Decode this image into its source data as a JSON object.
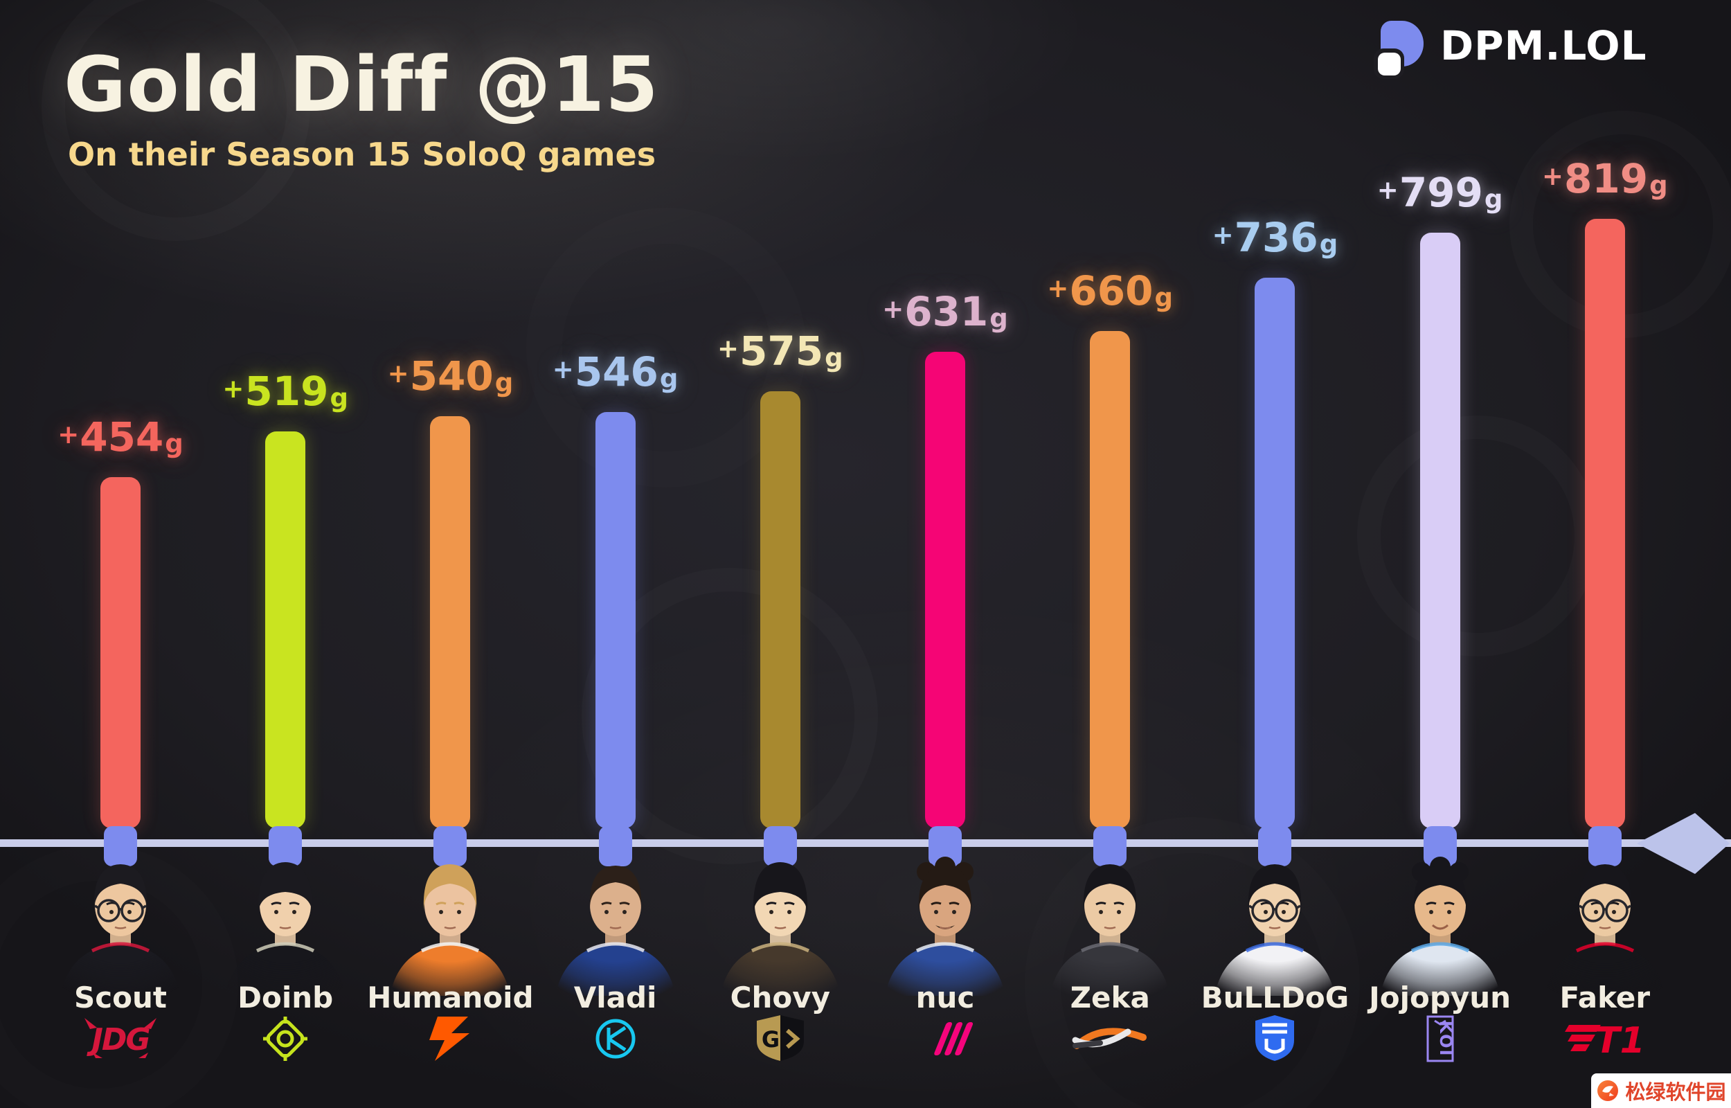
{
  "header": {
    "title": "Gold Diff @15",
    "subtitle": "On their Season 15 SoloQ games"
  },
  "brand": {
    "name": "DPM.LOL",
    "mark_color": "#7d8bee"
  },
  "axis": {
    "color": "#c9cdea",
    "connector_color": "#7d8bee",
    "end_diamond_color": "#bcc3ea"
  },
  "watermark": {
    "text": "松绿软件园",
    "text_color": "#e0452b",
    "icon": "fox-logo-icon",
    "background": "#ffffff"
  },
  "chart_data": {
    "type": "bar",
    "title": "Gold Diff @15",
    "subtitle": "On their Season 15 SoloQ games",
    "value_prefix": "+",
    "unit": "g",
    "grid": false,
    "legend": false,
    "categories": [
      "Scout",
      "Doinb",
      "Humanoid",
      "Vladi",
      "Chovy",
      "nuc",
      "Zeka",
      "BuLLDoG",
      "Jojopyun",
      "Faker"
    ],
    "values": [
      454,
      519,
      540,
      546,
      575,
      631,
      660,
      736,
      799,
      819
    ],
    "value_labels": [
      "+454g",
      "+519g",
      "+540g",
      "+546g",
      "+575g",
      "+631g",
      "+660g",
      "+736g",
      "+799g",
      "+819g"
    ],
    "bar_colors": [
      "#f4655e",
      "#c9e420",
      "#f0964b",
      "#7d8bee",
      "#a8892f",
      "#f50575",
      "#f0964b",
      "#7d8bee",
      "#d9cdf6",
      "#f4655e"
    ],
    "label_colors": [
      "#f4665e",
      "#c9e420",
      "#f0964b",
      "#a9c6ee",
      "#f3e7b5",
      "#ddb3cd",
      "#f0964b",
      "#a9cdf0",
      "#e4def5",
      "#f08d85"
    ]
  },
  "players": [
    {
      "name": "Scout",
      "team_logo": "jdg",
      "avatar": {
        "hair": "#1c1b20",
        "skin": "#edc79f",
        "jersey": "#1a1a20",
        "accent": "#d5173c",
        "style": "fringe",
        "glasses": true,
        "mustache": false,
        "smile": false
      }
    },
    {
      "name": "Doinb",
      "team_logo": "nip",
      "avatar": {
        "hair": "#1b1a1f",
        "skin": "#f0d0ac",
        "jersey": "#17171c",
        "accent": "#cfcdb8",
        "style": "bowl",
        "glasses": false,
        "mustache": false,
        "smile": false
      }
    },
    {
      "name": "Humanoid",
      "team_logo": "fnatic",
      "avatar": {
        "hair": "#cfa15a",
        "skin": "#ecc3a0",
        "jersey": "#ee7d2c",
        "accent": "#f5f5f5",
        "style": "fringe",
        "glasses": false,
        "mustache": false,
        "smile": false
      }
    },
    {
      "name": "Vladi",
      "team_logo": "karmine-corp",
      "avatar": {
        "hair": "#2c2019",
        "skin": "#dcb08c",
        "jersey": "#24418f",
        "accent": "#e8e8f0",
        "style": "short",
        "glasses": false,
        "mustache": false,
        "smile": false
      }
    },
    {
      "name": "Chovy",
      "team_logo": "geng",
      "avatar": {
        "hair": "#17161b",
        "skin": "#f2d7b4",
        "jersey": "#46392c",
        "accent": "#c9b07e",
        "style": "bowl",
        "glasses": false,
        "mustache": false,
        "smile": false
      }
    },
    {
      "name": "nuc",
      "team_logo": "bds",
      "avatar": {
        "hair": "#241a14",
        "skin": "#d9a57f",
        "jersey": "#2e4e9e",
        "accent": "#e8ecf4",
        "style": "curly",
        "glasses": false,
        "mustache": true,
        "smile": false
      }
    },
    {
      "name": "Zeka",
      "team_logo": "hle",
      "avatar": {
        "hair": "#17161b",
        "skin": "#eccaa4",
        "jersey": "#36363c",
        "accent": "#6a6a72",
        "style": "fringe",
        "glasses": false,
        "mustache": false,
        "smile": false
      }
    },
    {
      "name": "BuLLDoG",
      "team_logo": "blue-shield",
      "avatar": {
        "hair": "#17161b",
        "skin": "#f0d2ae",
        "jersey": "#f2f2f5",
        "accent": "#3a6ae0",
        "style": "fringe",
        "glasses": true,
        "mustache": false,
        "smile": false
      }
    },
    {
      "name": "Jojopyun",
      "team_logo": "koi",
      "avatar": {
        "hair": "#17161b",
        "skin": "#e6b88b",
        "jersey": "#dfe6f0",
        "accent": "#5aa8e8",
        "style": "curly",
        "glasses": false,
        "mustache": false,
        "smile": true
      }
    },
    {
      "name": "Faker",
      "team_logo": "t1",
      "avatar": {
        "hair": "#17161b",
        "skin": "#eccaa2",
        "jersey": "#16161a",
        "accent": "#e4002b",
        "style": "fringe",
        "glasses": true,
        "mustache": false,
        "smile": false
      }
    }
  ]
}
